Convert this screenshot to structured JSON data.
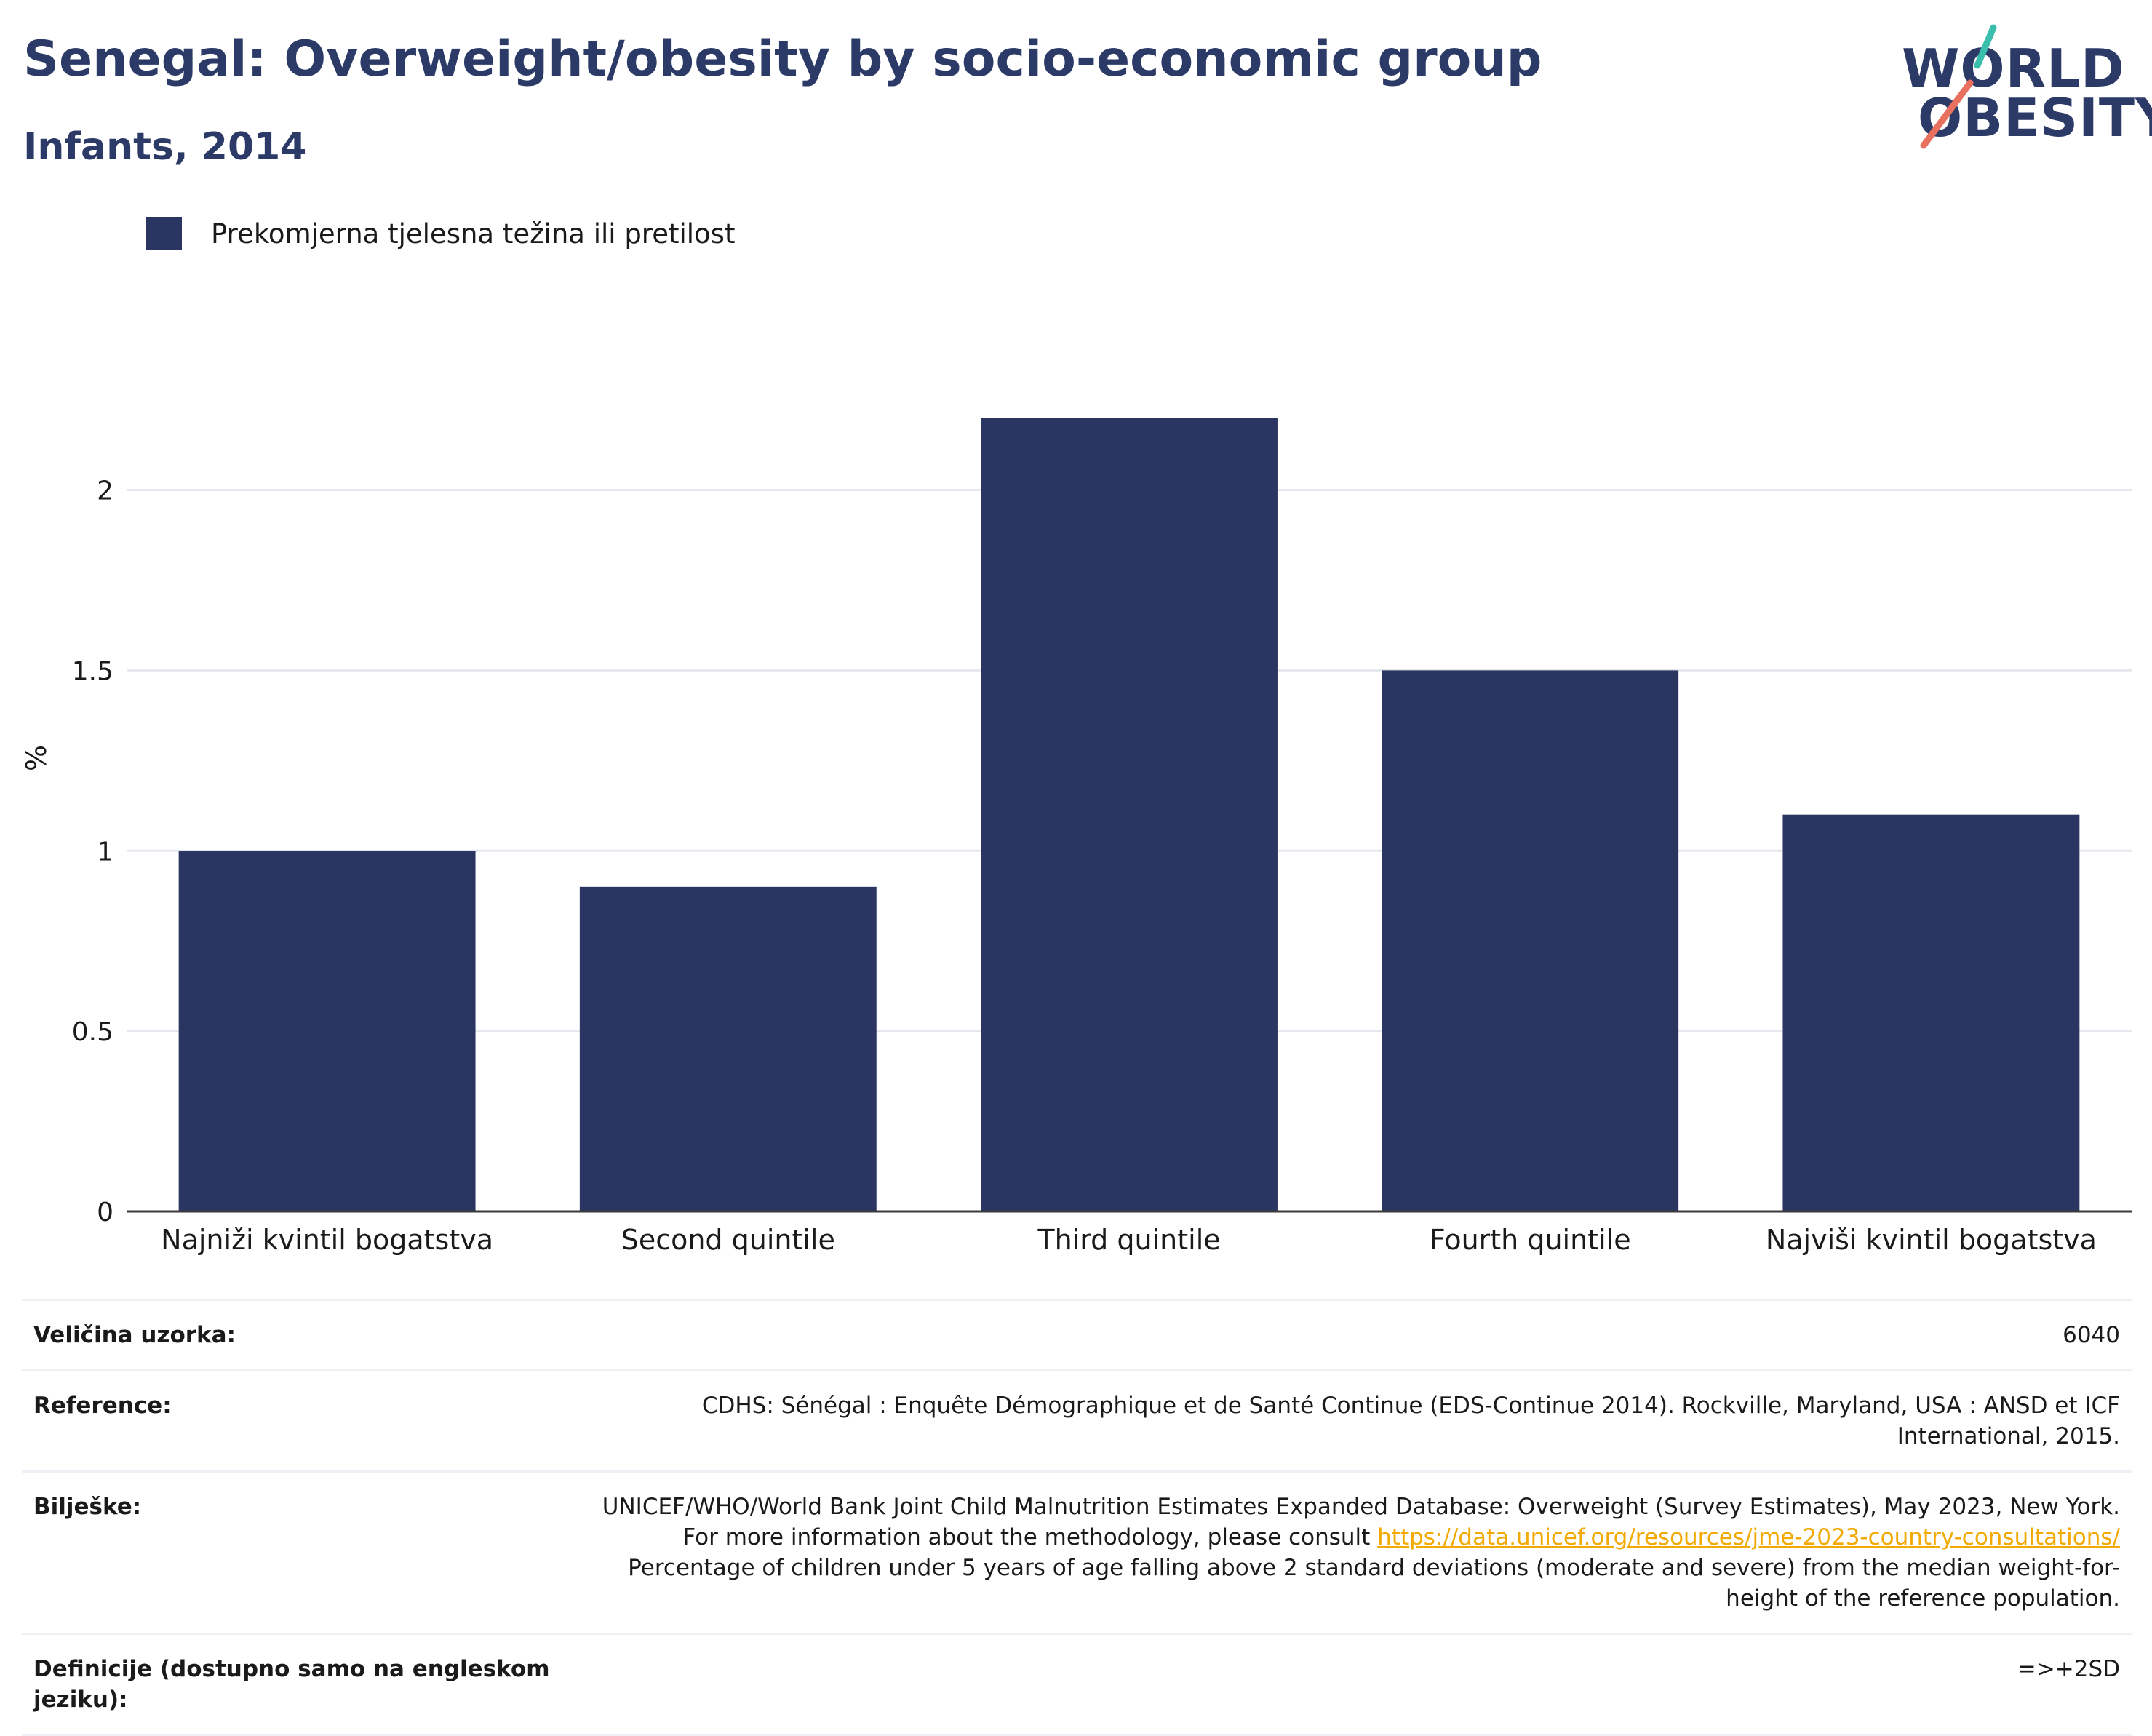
{
  "header": {
    "title": "Senegal: Overweight/obesity by socio-economic group",
    "subtitle": "Infants, 2014"
  },
  "logo": {
    "line1": "WORLD",
    "line2": "OBESITY",
    "colors": {
      "text": "#2b3a67",
      "slash_top": "#3bbfad",
      "slash_bottom": "#e8705e"
    }
  },
  "colors": {
    "bar": "#2a3561",
    "title": "#2b3a67",
    "link": "#f2a900",
    "grid": "#e6e8ef"
  },
  "chart_data": {
    "type": "bar",
    "categories": [
      "Najniži kvintil bogatstva",
      "Second quintile",
      "Third quintile",
      "Fourth quintile",
      "Najviši kvintil bogatstva"
    ],
    "series": [
      {
        "name": "Prekomjerna tjelesna težina ili pretilost",
        "values": [
          1.0,
          0.9,
          2.2,
          1.5,
          1.1
        ]
      }
    ],
    "yticks": [
      "0",
      "0.5",
      "1",
      "1.5",
      "2"
    ],
    "ylabel": "%",
    "xlabel": "",
    "ylim": [
      0,
      2.35
    ],
    "grid": true,
    "legend": "top-left"
  },
  "info": {
    "sample_label": "Veličina uzorka:",
    "sample_value": "6040",
    "reference_label": "Reference:",
    "reference_value": "CDHS: Sénégal : Enquête Démographique et de Santé Continue (EDS-Continue 2014). Rockville, Maryland, USA : ANSD et ICF International, 2015.",
    "notes_label": "Bilješke:",
    "notes_text_1": "UNICEF/WHO/World Bank Joint Child Malnutrition Estimates Expanded Database: Overweight (Survey Estimates), May 2023, New York. For more information about the methodology, please consult ",
    "notes_link": "https://data.unicef.org/resources/jme-2023-country-consultations/",
    "notes_text_2": " Percentage of children under 5 years of age falling above 2 standard deviations (moderate and severe) from the median weight-for-height of the reference population.",
    "definitions_label": "Definicije (dostupno samo na engleskom jeziku):",
    "definitions_value": "=>+2SD"
  }
}
